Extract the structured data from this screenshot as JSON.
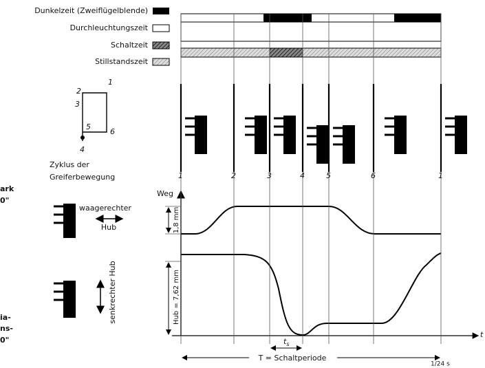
{
  "legend": [
    "Dunkelzeit (Zweiflügelblende)",
    "Durchleuchtungszeit",
    "Schaltzeit",
    "Stillstandszeit"
  ],
  "cycle": {
    "points": [
      "1",
      "2",
      "3",
      "4",
      "5",
      "6"
    ],
    "caption": [
      "Zyklus der",
      "Greiferbewegung"
    ]
  },
  "markers": [
    "1",
    "2",
    "3",
    "4",
    "5",
    "6",
    "1"
  ],
  "graph": {
    "y_label": "Weg",
    "x_label": "t",
    "horizontal_stroke": "1,8 mm",
    "vertical_stroke": "Hub = 7,62 mm",
    "switch_time": "t",
    "switch_time_sub": "s",
    "period": "T = Schaltperiode",
    "period_value": "1/24 s"
  },
  "side_labels": {
    "horizontal": [
      "waagerechter",
      "Hub"
    ],
    "vertical": "senkrechter Hub"
  },
  "cut_text": [
    "ark",
    "0\"",
    "ia-",
    "ns-",
    "0\""
  ]
}
